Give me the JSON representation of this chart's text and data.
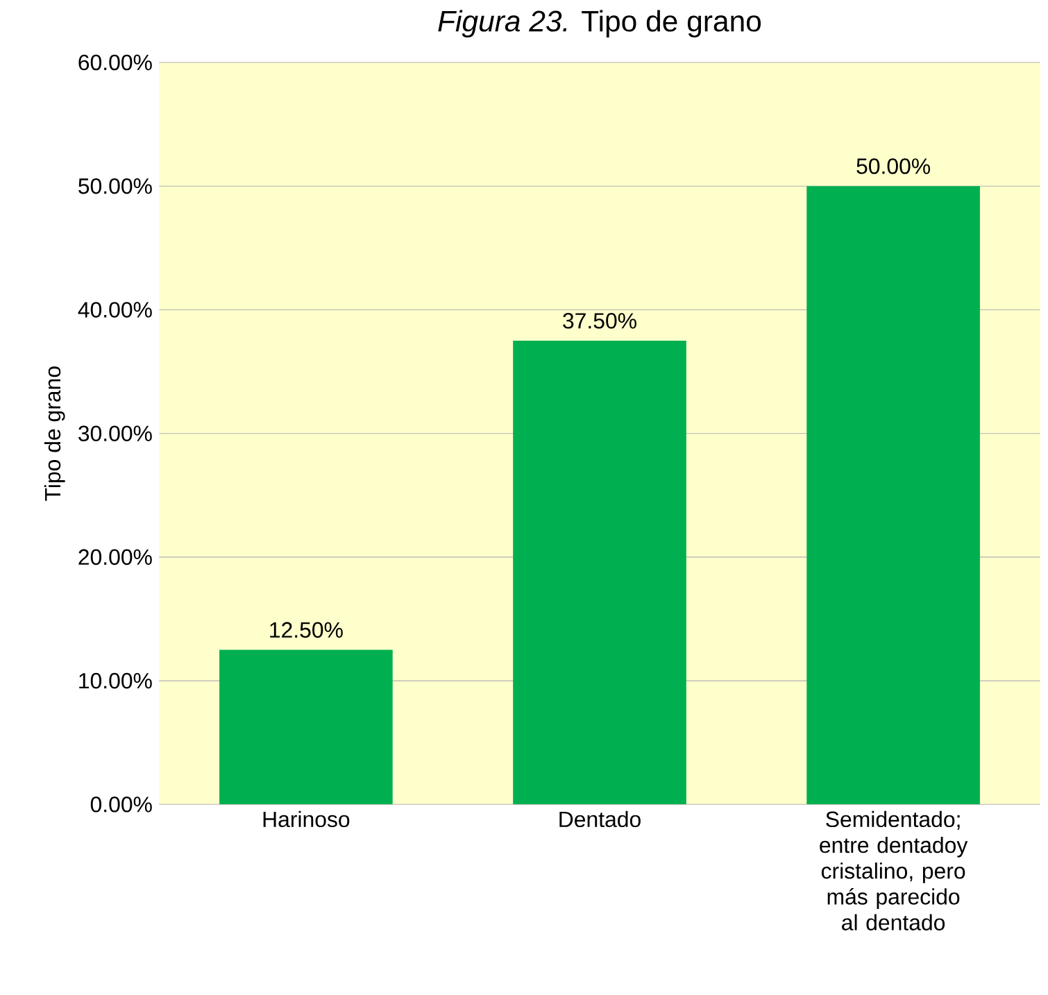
{
  "chart_data": {
    "type": "bar",
    "title": "*Figura 23.* Tipo de grano",
    "ylabel": "Tipo de grano",
    "categories": [
      "Harinoso",
      "Dentado",
      "Semidentado; entre dentadoy cristalino, pero más parecido al dentado"
    ],
    "values": [
      12.5,
      37.5,
      50.0
    ],
    "value_labels": [
      "12.50%",
      "37.50%",
      "50.00%"
    ],
    "color": "#00b050",
    "ylim": [
      0,
      60
    ],
    "yticks": [
      {
        "value": 0,
        "label": "0.00%"
      },
      {
        "value": 10,
        "label": "10.00%"
      },
      {
        "value": 20,
        "label": "20.00%"
      },
      {
        "value": 30,
        "label": "30.00%"
      },
      {
        "value": 40,
        "label": "40.00%"
      },
      {
        "value": 50,
        "label": "50.00%"
      },
      {
        "value": 60,
        "label": "60.00%"
      }
    ],
    "grid": "y"
  }
}
